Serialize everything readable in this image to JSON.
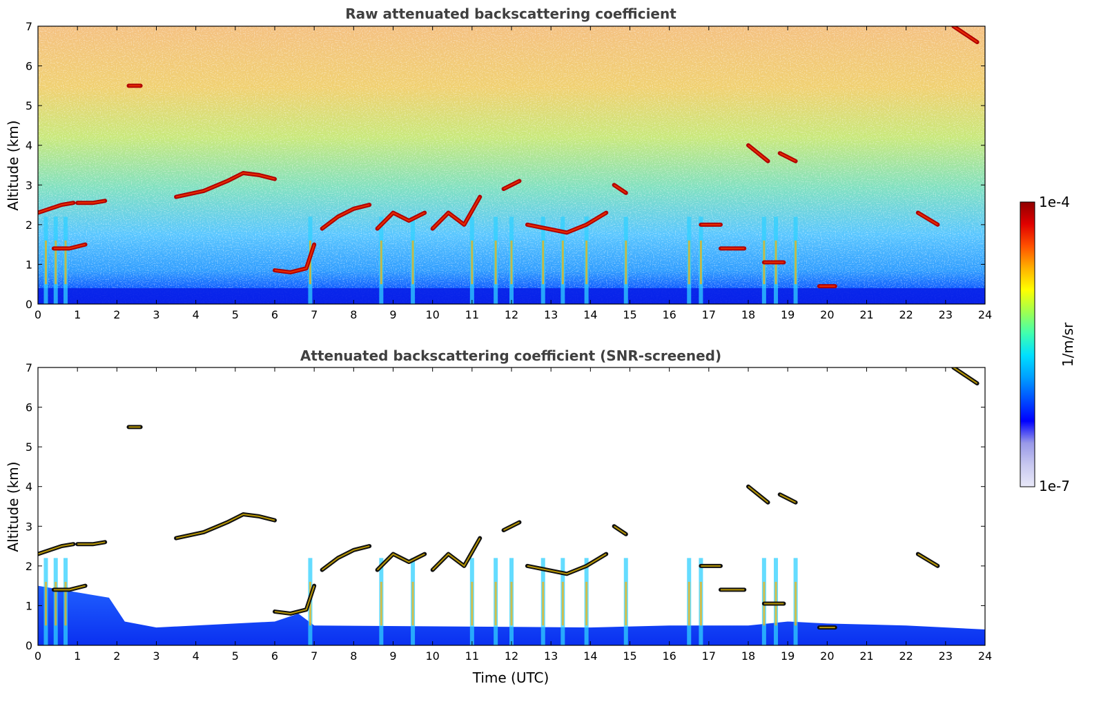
{
  "chart_data": [
    {
      "type": "heatmap",
      "title": "Raw attenuated backscattering coefficient",
      "ylabel": "Altitude (km)",
      "xlabel": "",
      "xlim": [
        0,
        24
      ],
      "ylim": [
        0,
        7
      ],
      "xticks": [
        "0",
        "1",
        "2",
        "3",
        "4",
        "5",
        "6",
        "7",
        "8",
        "9",
        "10",
        "11",
        "12",
        "13",
        "14",
        "15",
        "16",
        "17",
        "18",
        "19",
        "20",
        "21",
        "22",
        "23",
        "24"
      ],
      "yticks": [
        "0",
        "1",
        "2",
        "3",
        "4",
        "5",
        "6",
        "7"
      ],
      "grid": false,
      "cloud_layers": [
        {
          "t": [
            0.0,
            0.3,
            0.6,
            0.9
          ],
          "alt": [
            2.3,
            2.4,
            2.5,
            2.55
          ]
        },
        {
          "t": [
            0.4,
            0.8,
            1.2
          ],
          "alt": [
            1.4,
            1.4,
            1.5
          ]
        },
        {
          "t": [
            1.0,
            1.4,
            1.7
          ],
          "alt": [
            2.55,
            2.55,
            2.6
          ]
        },
        {
          "t": [
            2.3,
            2.6
          ],
          "alt": [
            5.5,
            5.5
          ]
        },
        {
          "t": [
            3.5,
            4.2,
            4.8,
            5.2,
            5.6,
            6.0
          ],
          "alt": [
            2.7,
            2.85,
            3.1,
            3.3,
            3.25,
            3.15
          ]
        },
        {
          "t": [
            6.0,
            6.4,
            6.8,
            7.0
          ],
          "alt": [
            0.85,
            0.8,
            0.9,
            1.5
          ]
        },
        {
          "t": [
            7.2,
            7.6,
            8.0,
            8.4
          ],
          "alt": [
            1.9,
            2.2,
            2.4,
            2.5
          ]
        },
        {
          "t": [
            8.6,
            9.0,
            9.4,
            9.8
          ],
          "alt": [
            1.9,
            2.3,
            2.1,
            2.3
          ]
        },
        {
          "t": [
            10.0,
            10.4,
            10.8,
            11.2
          ],
          "alt": [
            1.9,
            2.3,
            2.0,
            2.7
          ]
        },
        {
          "t": [
            11.8,
            12.2
          ],
          "alt": [
            2.9,
            3.1
          ]
        },
        {
          "t": [
            12.4,
            12.9,
            13.4,
            13.9,
            14.4
          ],
          "alt": [
            2.0,
            1.9,
            1.8,
            2.0,
            2.3
          ]
        },
        {
          "t": [
            14.6,
            14.9
          ],
          "alt": [
            3.0,
            2.8
          ]
        },
        {
          "t": [
            16.8,
            17.3
          ],
          "alt": [
            2.0,
            2.0
          ]
        },
        {
          "t": [
            17.3,
            17.9
          ],
          "alt": [
            1.4,
            1.4
          ]
        },
        {
          "t": [
            18.0,
            18.5
          ],
          "alt": [
            4.0,
            3.6
          ]
        },
        {
          "t": [
            18.8,
            19.2
          ],
          "alt": [
            3.8,
            3.6
          ]
        },
        {
          "t": [
            18.4,
            18.9
          ],
          "alt": [
            1.05,
            1.05
          ]
        },
        {
          "t": [
            19.8,
            20.2
          ],
          "alt": [
            0.45,
            0.45
          ]
        },
        {
          "t": [
            22.3,
            22.8
          ],
          "alt": [
            2.3,
            2.0
          ]
        },
        {
          "t": [
            23.2,
            23.8
          ],
          "alt": [
            7.0,
            6.6
          ]
        }
      ]
    },
    {
      "type": "heatmap",
      "title": "Attenuated backscattering coefficient (SNR-screened)",
      "ylabel": "Altitude (km)",
      "xlabel": "Time (UTC)",
      "xlim": [
        0,
        24
      ],
      "ylim": [
        0,
        7
      ],
      "xticks": [
        "0",
        "1",
        "2",
        "3",
        "4",
        "5",
        "6",
        "7",
        "8",
        "9",
        "10",
        "11",
        "12",
        "13",
        "14",
        "15",
        "16",
        "17",
        "18",
        "19",
        "20",
        "21",
        "22",
        "23",
        "24"
      ],
      "yticks": [
        "0",
        "1",
        "2",
        "3",
        "4",
        "5",
        "6",
        "7"
      ],
      "grid": false
    }
  ],
  "colorbar": {
    "label": "1/m/sr",
    "max_label": "1e-4",
    "min_label": "1e-7",
    "colors": [
      "#e8e8f8",
      "#c8c8f0",
      "#9898e8",
      "#0000ff",
      "#0050ff",
      "#00a0ff",
      "#00e0ff",
      "#40ffb0",
      "#a0ff50",
      "#ffff00",
      "#ffb000",
      "#ff5000",
      "#e00000",
      "#900000"
    ]
  }
}
